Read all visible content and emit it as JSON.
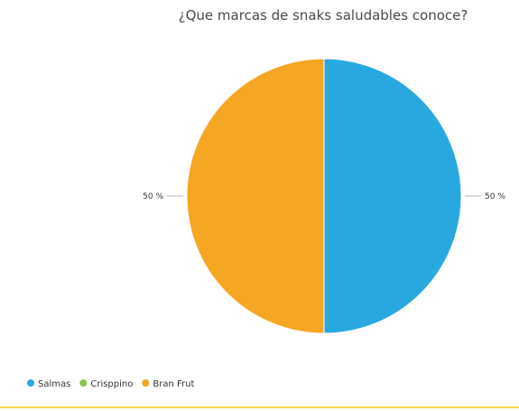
{
  "chart_data": {
    "type": "pie",
    "title": "¿Que marcas de snaks saludables conoce?",
    "series": [
      {
        "name": "Salmas",
        "value": 50,
        "label": "50 %",
        "color": "#29a8e0"
      },
      {
        "name": "Crisppino",
        "value": 0,
        "label": "",
        "color": "#8bc34a"
      },
      {
        "name": "Bran Frut",
        "value": 50,
        "label": "50 %",
        "color": "#f5a623"
      }
    ],
    "legend_position": "bottom-left"
  },
  "colors": {
    "bottom_rule": "#f5d547"
  }
}
